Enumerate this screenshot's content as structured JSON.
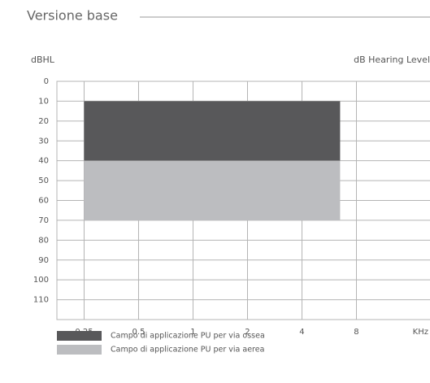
{
  "chart_data": {
    "type": "range",
    "title": "Versione base",
    "y_label": "dBHL",
    "y_label_right": "dB Hearing Level",
    "x_label": "KHz",
    "xscale": "log",
    "xlim": [
      0.1768,
      22.63
    ],
    "xticks": [
      0.25,
      0.5,
      1,
      2,
      4,
      8
    ],
    "ylim": [
      0,
      120
    ],
    "yticks": [
      0,
      10,
      20,
      30,
      40,
      50,
      60,
      70,
      80,
      90,
      100,
      110
    ],
    "y_inverted": true,
    "grid": true,
    "series": [
      {
        "name": "Campo di applicazione PU per via ossea",
        "color": "#58585a",
        "x": [
          0.25,
          6.5
        ],
        "values": [
          10,
          40
        ]
      },
      {
        "name": "Campo di applicazione PU per via aerea",
        "color": "#bcbdc0",
        "x": [
          0.25,
          6.5
        ],
        "values": [
          40,
          70
        ]
      }
    ]
  }
}
